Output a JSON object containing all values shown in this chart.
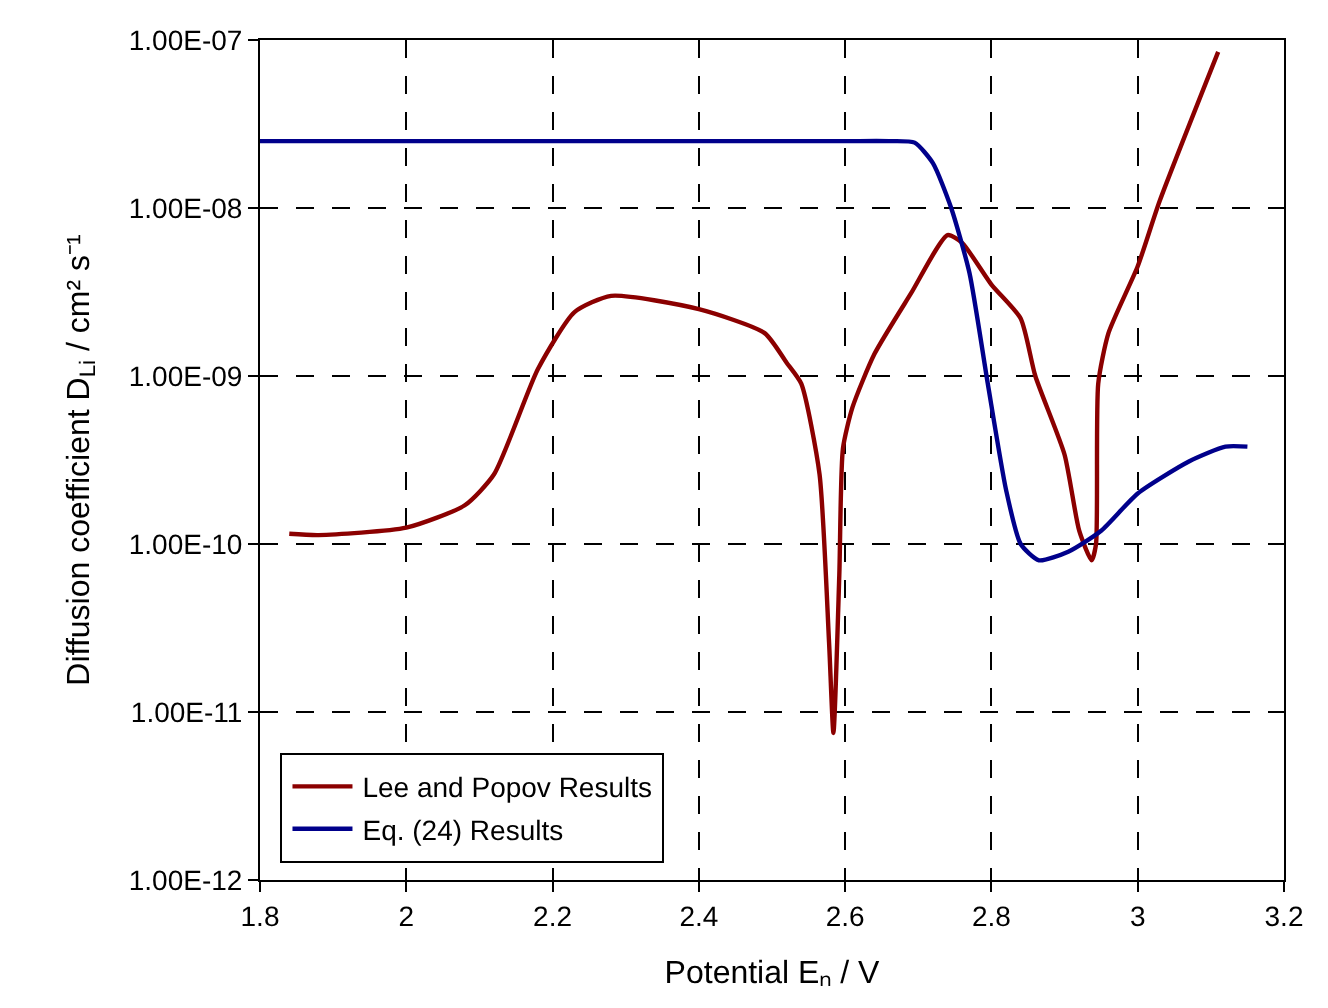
{
  "chart_data": {
    "type": "line",
    "xlabel": "Potential Eₙ / V",
    "ylabel": "Diffusion coefficient D$_{Li}$ / cm² s⁻¹",
    "log": "y",
    "grid": true,
    "legend": "bottom left",
    "marker": "none",
    "line_style": "solid",
    "xlim": [
      1.8,
      3.2
    ],
    "xticks": [
      1.8,
      2,
      2.2,
      2.4,
      2.6,
      2.8,
      3,
      3.2
    ],
    "ylim": [
      1e-12,
      1e-07
    ],
    "yticks": [
      {
        "value": 1e-12,
        "label": "1.00E-12"
      },
      {
        "value": 1e-11,
        "label": "1.00E-11"
      },
      {
        "value": 1e-10,
        "label": "1.00E-10"
      },
      {
        "value": 1e-09,
        "label": "1.00E-09"
      },
      {
        "value": 1e-08,
        "label": "1.00E-08"
      },
      {
        "value": 1e-07,
        "label": "1.00E-07"
      }
    ],
    "series": [
      {
        "name": "Lee and Popov Results",
        "color": "#8b0000",
        "x": [
          1.84,
          1.88,
          2.0,
          2.08,
          2.12,
          2.18,
          2.23,
          2.28,
          2.4,
          2.49,
          2.52,
          2.54,
          2.565,
          2.578,
          2.584,
          2.592,
          2.597,
          2.61,
          2.64,
          2.69,
          2.74,
          2.76,
          2.8,
          2.84,
          2.86,
          2.9,
          2.92,
          2.937,
          2.943,
          2.946,
          2.96,
          3.0,
          3.03,
          3.11
        ],
        "values": [
          1.15e-10,
          1.13e-10,
          1.25e-10,
          1.7e-10,
          2.6e-10,
          1.1e-09,
          2.4e-09,
          3e-09,
          2.5e-09,
          1.8e-09,
          1.2e-09,
          9e-10,
          2.6e-10,
          2.6e-11,
          7.5e-12,
          6.5e-11,
          3.7e-10,
          6.5e-10,
          1.35e-09,
          3.1e-09,
          6.9e-09,
          6.2e-09,
          3.5e-09,
          2.2e-09,
          1e-09,
          3.4e-10,
          1.2e-10,
          8e-11,
          1e-10,
          9e-10,
          1.8e-09,
          4.5e-09,
          1.1e-08,
          8.5e-08
        ]
      },
      {
        "name": "Eq. (24) Results",
        "color": "#00008b",
        "x": [
          1.8,
          2.2,
          2.6,
          2.66,
          2.695,
          2.72,
          2.745,
          2.77,
          2.795,
          2.82,
          2.84,
          2.865,
          2.905,
          2.95,
          3.0,
          3.07,
          3.12,
          3.15
        ],
        "values": [
          2.5e-08,
          2.5e-08,
          2.5e-08,
          2.5e-08,
          2.45e-08,
          1.85e-08,
          1e-08,
          4.1e-09,
          9e-10,
          2.1e-10,
          1e-10,
          8e-11,
          9e-11,
          1.2e-10,
          2e-10,
          3.1e-10,
          3.8e-10,
          3.8e-10
        ]
      }
    ]
  }
}
